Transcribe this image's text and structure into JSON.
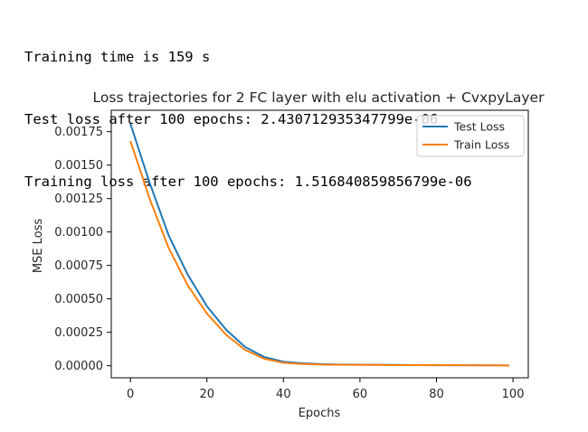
{
  "console_lines": [
    "Training time is 159 s",
    "Test loss after 100 epochs: 2.430712935347799e-06",
    "Training loss after 100 epochs: 1.516840859856799e-06"
  ],
  "chart_data": {
    "type": "line",
    "title": "Loss trajectories for 2 FC layer with elu activation + CvxpyLayer",
    "xlabel": "Epochs",
    "ylabel": "MSE Loss",
    "xlim": [
      -5,
      104
    ],
    "ylim": [
      -9e-05,
      0.00191
    ],
    "x_ticks": [
      0,
      20,
      40,
      60,
      80,
      100
    ],
    "y_ticks": [
      0.0,
      0.00025,
      0.0005,
      0.00075,
      0.001,
      0.00125,
      0.0015,
      0.00175
    ],
    "y_tick_labels": [
      "0.00000",
      "0.00025",
      "0.00050",
      "0.00075",
      "0.00100",
      "0.00125",
      "0.00150",
      "0.00175"
    ],
    "grid": false,
    "legend_position": "upper right",
    "x": [
      0,
      5,
      10,
      15,
      20,
      25,
      30,
      35,
      40,
      45,
      50,
      55,
      60,
      65,
      70,
      75,
      80,
      85,
      90,
      95,
      99
    ],
    "series": [
      {
        "name": "Test Loss",
        "color": "#1f77b4",
        "values": [
          0.00181,
          0.00137,
          0.000975,
          0.00068,
          0.000445,
          0.00027,
          0.00014,
          6.5e-05,
          3e-05,
          1.8e-05,
          1.2e-05,
          9e-06,
          8e-06,
          7e-06,
          6e-06,
          5e-06,
          4.5e-06,
          4e-06,
          3.5e-06,
          3e-06,
          2.4e-06
        ]
      },
      {
        "name": "Train Loss",
        "color": "#ff7f0e",
        "values": [
          0.00168,
          0.00125,
          0.00088,
          0.0006,
          0.00039,
          0.000232,
          0.000118,
          5.2e-05,
          2.2e-05,
          1.3e-05,
          9e-06,
          7e-06,
          6e-06,
          5.5e-06,
          5e-06,
          4.5e-06,
          4e-06,
          3.5e-06,
          3e-06,
          2.5e-06,
          1.5e-06
        ]
      }
    ]
  }
}
